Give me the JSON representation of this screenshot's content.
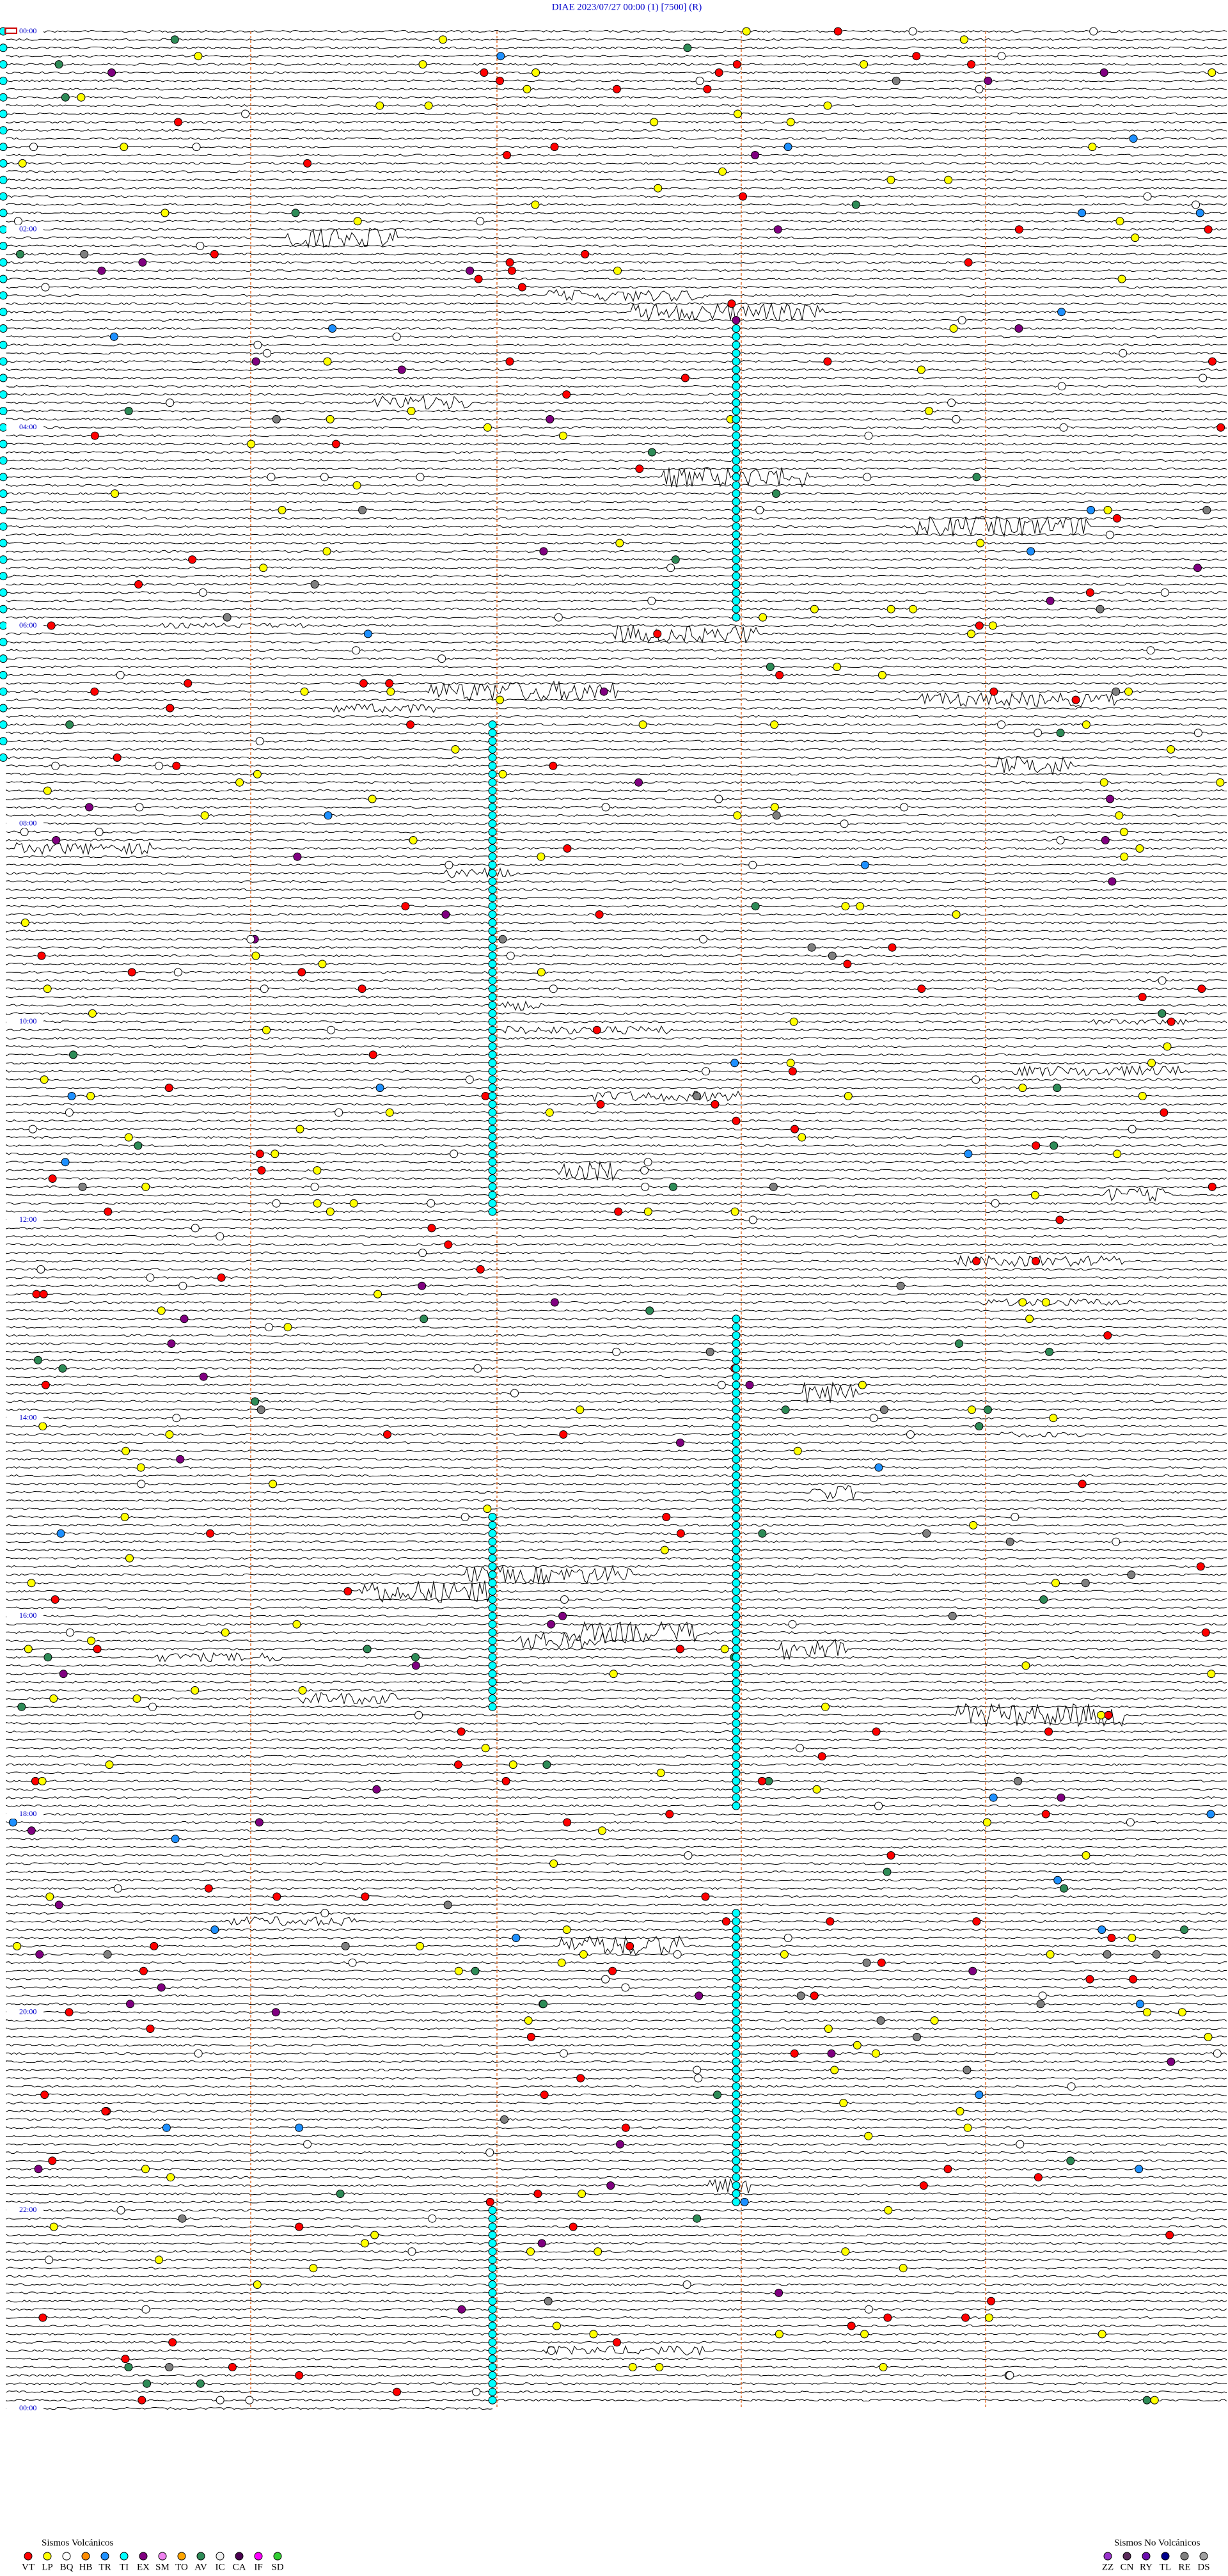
{
  "header": {
    "title": "DIAE    2023/07/27 00:00     (1)    [7500]   (R)"
  },
  "time_labels": [
    "00:00",
    "02:00",
    "04:00",
    "06:00",
    "08:00",
    "10:00",
    "12:00",
    "14:00",
    "16:00",
    "18:00",
    "20:00",
    "22:00",
    "00:00"
  ],
  "legend": {
    "volcanic": {
      "title": "Sismos Volcánicos",
      "items": [
        {
          "code": "VT",
          "color": "#ff0000"
        },
        {
          "code": "LP",
          "color": "#ffff00"
        },
        {
          "code": "BQ",
          "color": "#ffffff"
        },
        {
          "code": "HB",
          "color": "#ff8c00"
        },
        {
          "code": "TR",
          "color": "#1e90ff"
        },
        {
          "code": "TI",
          "color": "#00ffff"
        },
        {
          "code": "EX",
          "color": "#800080"
        },
        {
          "code": "SM",
          "color": "#ee82ee"
        },
        {
          "code": "TO",
          "color": "#ffa500"
        },
        {
          "code": "AV",
          "color": "#2e8b57"
        },
        {
          "code": "IC",
          "color": "#f0f0f0"
        },
        {
          "code": "CA",
          "color": "#4b0050"
        },
        {
          "code": "IF",
          "color": "#ff00ff"
        },
        {
          "code": "SD",
          "color": "#32cd32"
        }
      ]
    },
    "non_volcanic": {
      "title": "Sismos No Volcánicos",
      "items": [
        {
          "code": "ZZ",
          "color": "#9932cc"
        },
        {
          "code": "CN",
          "color": "#5a2a5a"
        },
        {
          "code": "RY",
          "color": "#6a0dad"
        },
        {
          "code": "TL",
          "color": "#00008b"
        },
        {
          "code": "RE",
          "color": "#808080"
        },
        {
          "code": "DS",
          "color": "#a0a0a0"
        }
      ]
    }
  }
}
